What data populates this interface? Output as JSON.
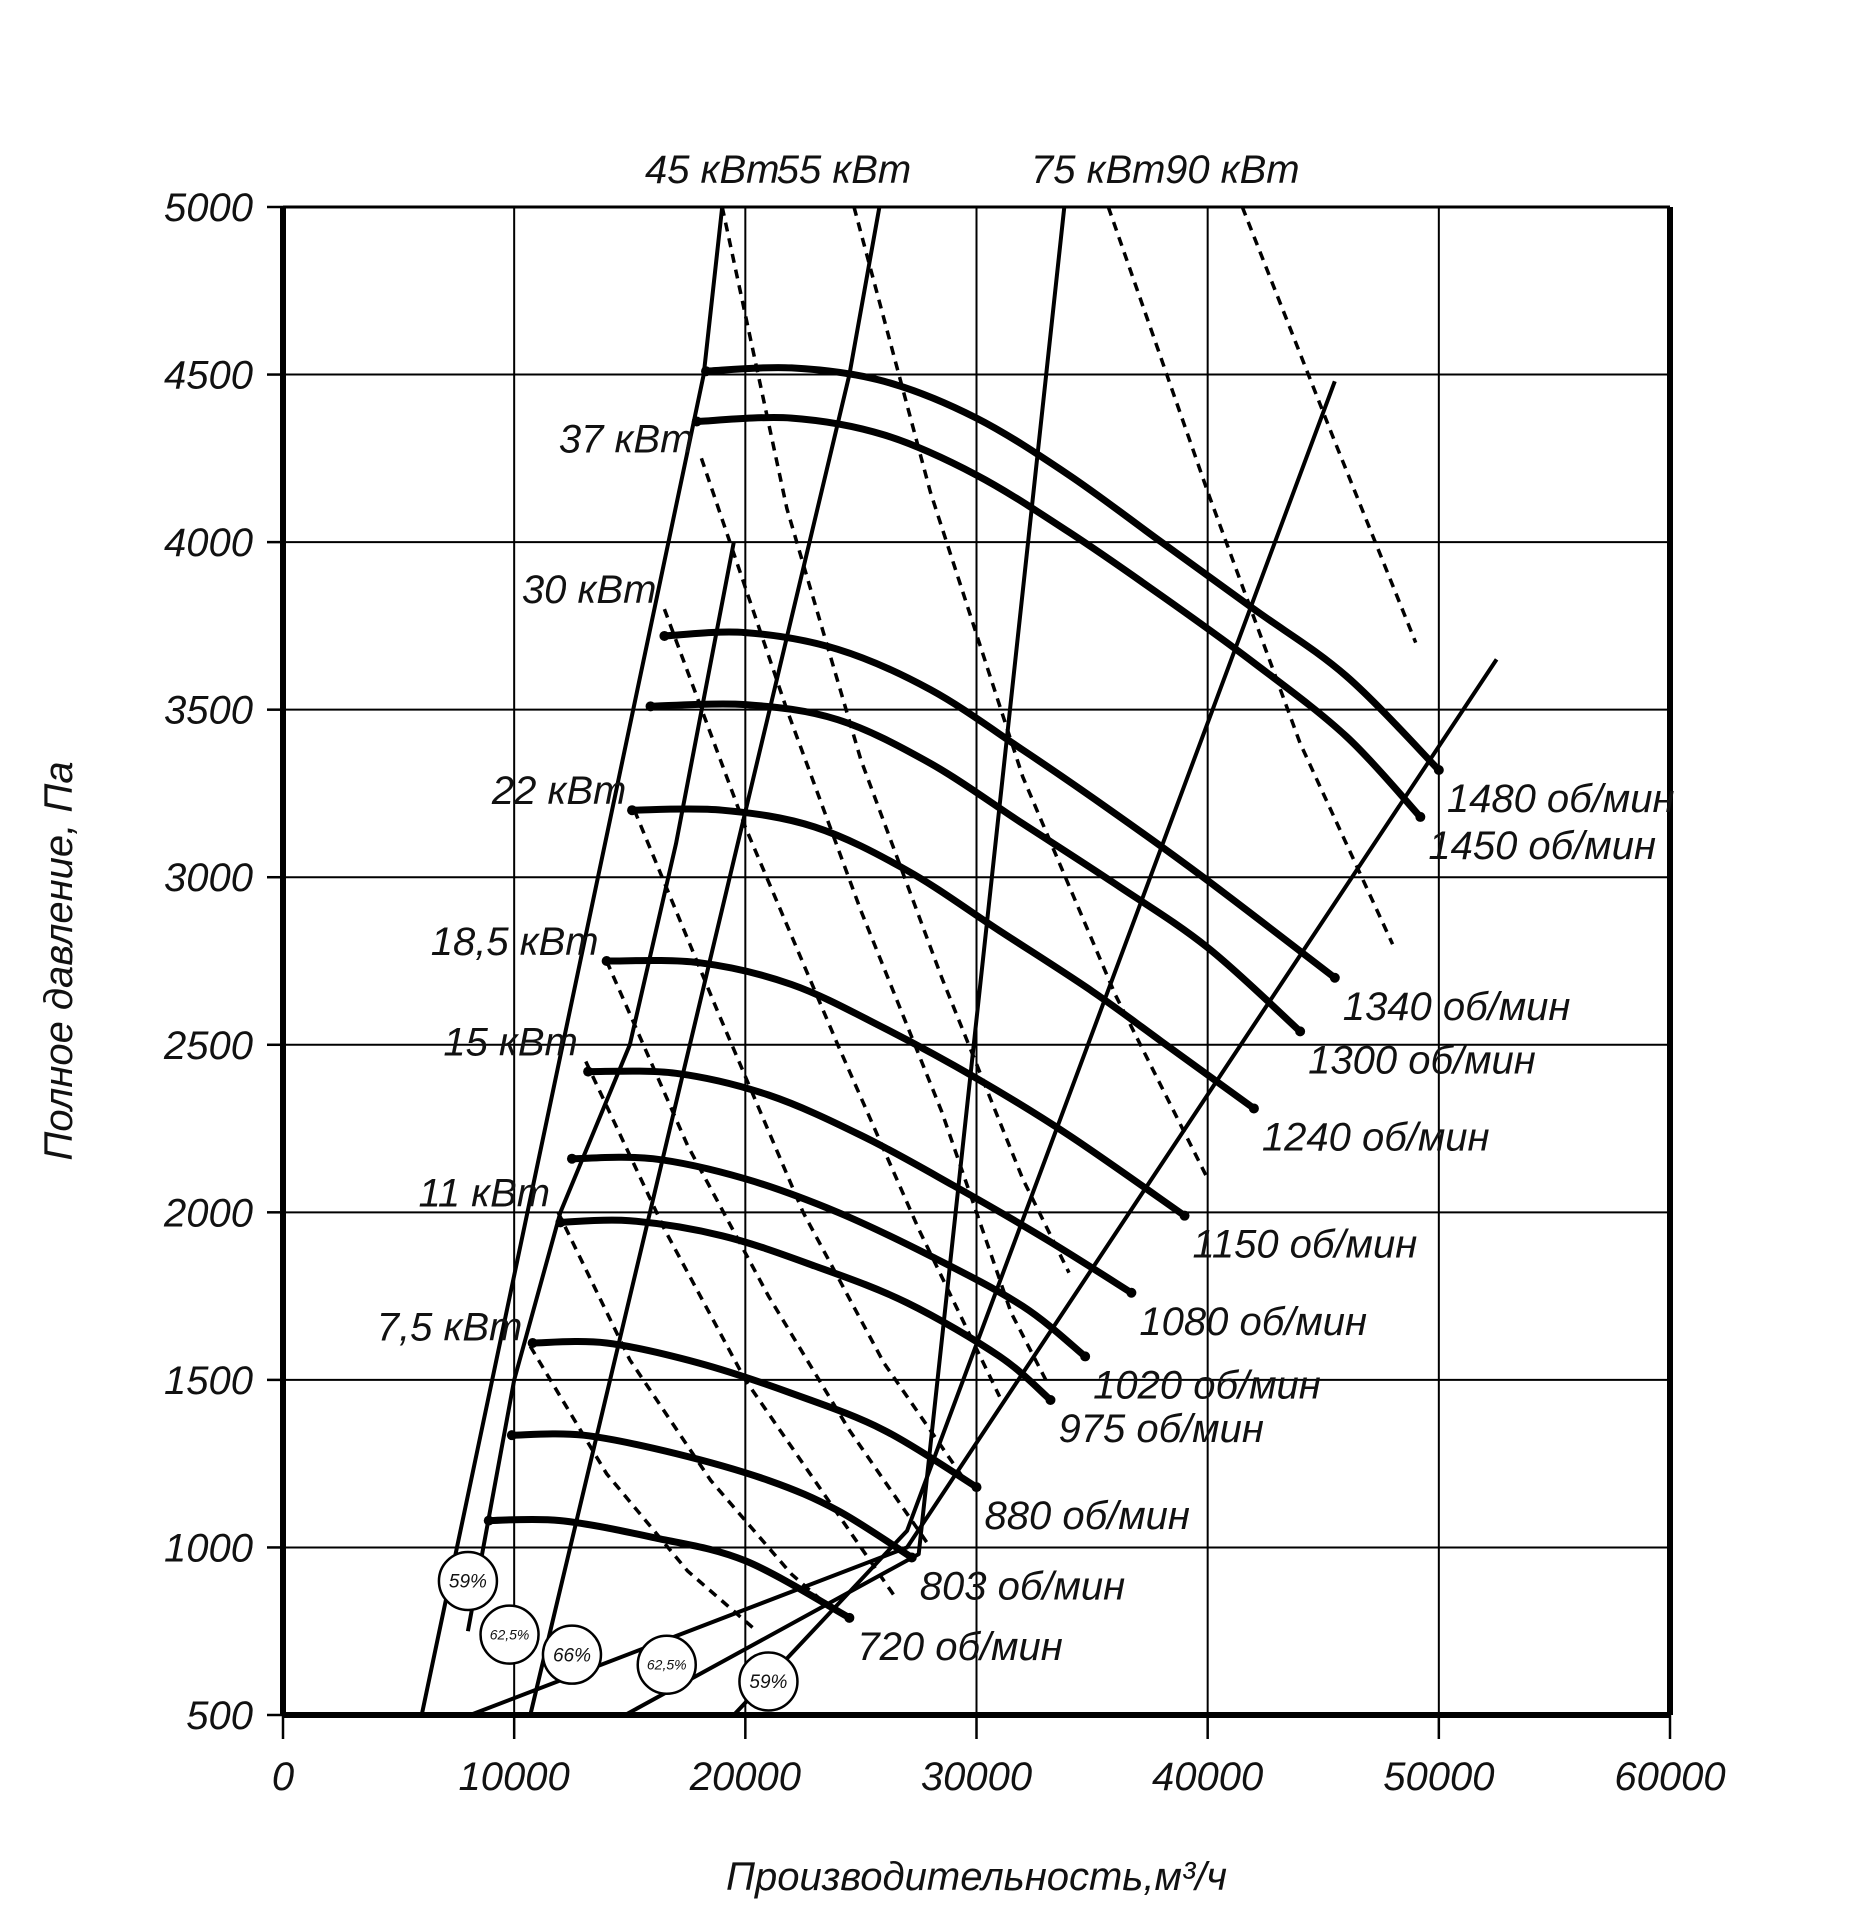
{
  "chart_data": {
    "type": "line",
    "title": "",
    "xlabel": "Производительность,м³/ч",
    "ylabel": "Полное давление, Па",
    "xlim": [
      0,
      60000
    ],
    "ylim": [
      500,
      5000
    ],
    "xticks": [
      0,
      10000,
      20000,
      30000,
      40000,
      50000,
      60000
    ],
    "yticks": [
      500,
      1000,
      1500,
      2000,
      2500,
      3000,
      3500,
      4000,
      4500,
      5000
    ],
    "grid": true,
    "colors": {
      "line": "#000000",
      "grid": "#000000",
      "background": "#ffffff"
    },
    "speed_curves": [
      {
        "name": "1480 об/мин",
        "points": [
          [
            18300,
            4510
          ],
          [
            22000,
            4520
          ],
          [
            26000,
            4480
          ],
          [
            30000,
            4370
          ],
          [
            34000,
            4200
          ],
          [
            38000,
            4000
          ],
          [
            42000,
            3800
          ],
          [
            46000,
            3600
          ],
          [
            50000,
            3320
          ]
        ]
      },
      {
        "name": "1450 об/мин",
        "points": [
          [
            17900,
            4360
          ],
          [
            22000,
            4370
          ],
          [
            26000,
            4320
          ],
          [
            30000,
            4200
          ],
          [
            34000,
            4030
          ],
          [
            38000,
            3840
          ],
          [
            42000,
            3640
          ],
          [
            46000,
            3420
          ],
          [
            49200,
            3180
          ]
        ]
      },
      {
        "name": "1340 об/мин",
        "points": [
          [
            16500,
            3720
          ],
          [
            20000,
            3730
          ],
          [
            24000,
            3680
          ],
          [
            28000,
            3560
          ],
          [
            32000,
            3380
          ],
          [
            36000,
            3190
          ],
          [
            40000,
            2990
          ],
          [
            45500,
            2700
          ]
        ]
      },
      {
        "name": "1300 об/мин",
        "points": [
          [
            15900,
            3510
          ],
          [
            20000,
            3515
          ],
          [
            24000,
            3470
          ],
          [
            28000,
            3340
          ],
          [
            32000,
            3160
          ],
          [
            36000,
            2980
          ],
          [
            40000,
            2790
          ],
          [
            44000,
            2540
          ]
        ]
      },
      {
        "name": "1240 об/мин",
        "points": [
          [
            15100,
            3200
          ],
          [
            19000,
            3200
          ],
          [
            23000,
            3150
          ],
          [
            27000,
            3020
          ],
          [
            31000,
            2840
          ],
          [
            35000,
            2660
          ],
          [
            38000,
            2510
          ],
          [
            42000,
            2310
          ]
        ]
      },
      {
        "name": "1150 об/мин",
        "points": [
          [
            14000,
            2750
          ],
          [
            18000,
            2745
          ],
          [
            22000,
            2680
          ],
          [
            26000,
            2550
          ],
          [
            30000,
            2400
          ],
          [
            34000,
            2230
          ],
          [
            39000,
            1990
          ]
        ]
      },
      {
        "name": "1080 об/мин",
        "points": [
          [
            13200,
            2420
          ],
          [
            17000,
            2415
          ],
          [
            21000,
            2350
          ],
          [
            25000,
            2230
          ],
          [
            29000,
            2080
          ],
          [
            33000,
            1920
          ],
          [
            36700,
            1760
          ]
        ]
      },
      {
        "name": "1020 об/мин",
        "points": [
          [
            12500,
            2160
          ],
          [
            16000,
            2160
          ],
          [
            20000,
            2100
          ],
          [
            24000,
            2000
          ],
          [
            28000,
            1870
          ],
          [
            32000,
            1720
          ],
          [
            34700,
            1570
          ]
        ]
      },
      {
        "name": "975 об/мин",
        "points": [
          [
            12000,
            1970
          ],
          [
            15000,
            1975
          ],
          [
            19000,
            1930
          ],
          [
            23000,
            1840
          ],
          [
            27000,
            1730
          ],
          [
            31000,
            1570
          ],
          [
            33200,
            1440
          ]
        ]
      },
      {
        "name": "880 об/мин",
        "points": [
          [
            10800,
            1610
          ],
          [
            14000,
            1610
          ],
          [
            18000,
            1550
          ],
          [
            22000,
            1460
          ],
          [
            26000,
            1350
          ],
          [
            30000,
            1180
          ]
        ]
      },
      {
        "name": "803 об/мин",
        "points": [
          [
            9900,
            1335
          ],
          [
            13000,
            1335
          ],
          [
            17000,
            1280
          ],
          [
            21000,
            1200
          ],
          [
            24000,
            1110
          ],
          [
            27200,
            970
          ]
        ]
      },
      {
        "name": "720 об/мин",
        "points": [
          [
            8900,
            1080
          ],
          [
            12000,
            1080
          ],
          [
            16000,
            1030
          ],
          [
            20000,
            960
          ],
          [
            24500,
            790
          ]
        ]
      }
    ],
    "system_lines": [
      {
        "points": [
          [
            6000,
            500
          ],
          [
            18200,
            4500
          ],
          [
            19000,
            5000
          ]
        ]
      },
      {
        "points": [
          [
            8100,
            500
          ],
          [
            27000,
            1000
          ],
          [
            52500,
            3650
          ]
        ]
      },
      {
        "points": [
          [
            10700,
            500
          ],
          [
            24500,
            4500
          ],
          [
            25800,
            5000
          ]
        ]
      },
      {
        "points": [
          [
            14800,
            500
          ],
          [
            27500,
            980
          ],
          [
            33800,
            5000
          ]
        ]
      },
      {
        "points": [
          [
            19500,
            500
          ],
          [
            27000,
            1050
          ],
          [
            45500,
            4480
          ]
        ]
      },
      {
        "points": [
          [
            8000,
            750
          ],
          [
            10000,
            1500
          ],
          [
            12000,
            2000
          ],
          [
            15000,
            2500
          ],
          [
            17000,
            3100
          ],
          [
            19500,
            4000
          ]
        ]
      }
    ],
    "power_lines": [
      {
        "name": "45 кВт",
        "points": [
          [
            19000,
            5000
          ],
          [
            21800,
            4100
          ],
          [
            25000,
            3350
          ],
          [
            28500,
            2700
          ],
          [
            32000,
            2100
          ],
          [
            34000,
            1820
          ]
        ]
      },
      {
        "name": "55 кВт",
        "points": [
          [
            24700,
            5000
          ],
          [
            28000,
            4150
          ],
          [
            32000,
            3300
          ],
          [
            36000,
            2650
          ],
          [
            40000,
            2100
          ]
        ]
      },
      {
        "name": "75 кВт",
        "points": [
          [
            35700,
            5000
          ],
          [
            40000,
            4150
          ],
          [
            44000,
            3400
          ],
          [
            48000,
            2800
          ]
        ]
      },
      {
        "name": "90 кВт",
        "points": [
          [
            41500,
            5000
          ],
          [
            45500,
            4300
          ],
          [
            49000,
            3700
          ]
        ]
      },
      {
        "name": "37 кВт",
        "points": [
          [
            18100,
            4250
          ],
          [
            21800,
            3500
          ],
          [
            25000,
            2900
          ],
          [
            28500,
            2300
          ],
          [
            31500,
            1700
          ],
          [
            33000,
            1500
          ]
        ]
      },
      {
        "name": "30 кВт",
        "points": [
          [
            16500,
            3800
          ],
          [
            20000,
            3150
          ],
          [
            24000,
            2500
          ],
          [
            27500,
            1950
          ],
          [
            31000,
            1450
          ]
        ]
      },
      {
        "name": "22 кВт",
        "points": [
          [
            15200,
            3200
          ],
          [
            18800,
            2600
          ],
          [
            22500,
            2000
          ],
          [
            26000,
            1550
          ],
          [
            29500,
            1200
          ]
        ]
      },
      {
        "name": "18,5 кВт",
        "points": [
          [
            14000,
            2750
          ],
          [
            17500,
            2200
          ],
          [
            21000,
            1750
          ],
          [
            24500,
            1350
          ],
          [
            28000,
            1000
          ]
        ]
      },
      {
        "name": "15 кВт",
        "points": [
          [
            13100,
            2450
          ],
          [
            16500,
            1950
          ],
          [
            20000,
            1500
          ],
          [
            23500,
            1150
          ],
          [
            26500,
            850
          ]
        ]
      },
      {
        "name": "11 кВт",
        "points": [
          [
            11900,
            2000
          ],
          [
            15000,
            1560
          ],
          [
            18500,
            1200
          ],
          [
            22000,
            920
          ],
          [
            24000,
            800
          ]
        ]
      },
      {
        "name": "7,5 кВт",
        "points": [
          [
            10700,
            1600
          ],
          [
            14000,
            1220
          ],
          [
            17500,
            930
          ],
          [
            20500,
            750
          ]
        ]
      }
    ],
    "efficiency_markers": [
      {
        "label": "59%",
        "x": 8000,
        "y": 900
      },
      {
        "label": "62,5%",
        "x": 9800,
        "y": 740
      },
      {
        "label": "66%",
        "x": 12500,
        "y": 680
      },
      {
        "label": "62,5%",
        "x": 16600,
        "y": 650
      },
      {
        "label": "59%",
        "x": 21000,
        "y": 600
      }
    ]
  }
}
